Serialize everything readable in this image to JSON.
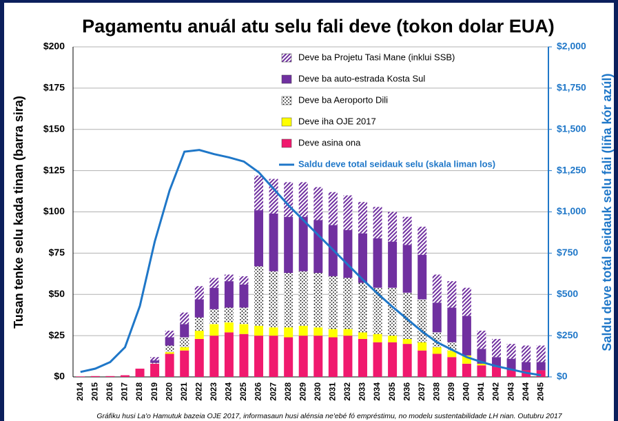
{
  "chart_data": {
    "type": "stacked_bar_line",
    "title": "Pagamentu anuál atu selu fali deve (tokon dolar EUA)",
    "y_label": "Tusan tenke selu kada tinan (barra sira)",
    "y2_label": "Saldu deve totál seidauk selu fali (liña kór azúl)",
    "footnote": "Gráfiku husi La'o Hamutuk bazeia OJE 2017, informasaun husi alénsia ne'ebé fó empréstimu, no modelu sustentabilidade LH nian. Outubru 2017",
    "categories": [
      "2014",
      "2015",
      "2016",
      "2017",
      "2018",
      "2019",
      "2020",
      "2021",
      "2022",
      "2023",
      "2024",
      "2025",
      "2026",
      "2027",
      "2028",
      "2029",
      "2030",
      "2031",
      "2032",
      "2033",
      "2034",
      "2035",
      "2036",
      "2037",
      "2038",
      "2039",
      "2040",
      "2041",
      "2042",
      "2043",
      "2044",
      "2045"
    ],
    "ylim": [
      0,
      200
    ],
    "yticks": [
      {
        "value": 0,
        "label": "$0"
      },
      {
        "value": 25,
        "label": "$25"
      },
      {
        "value": 50,
        "label": "$50"
      },
      {
        "value": 75,
        "label": "$75"
      },
      {
        "value": 100,
        "label": "$100"
      },
      {
        "value": 125,
        "label": "$125"
      },
      {
        "value": 150,
        "label": "$150"
      },
      {
        "value": 175,
        "label": "$175"
      },
      {
        "value": 200,
        "label": "$200"
      }
    ],
    "y2lim": [
      0,
      2000
    ],
    "y2ticks": [
      {
        "value": 0,
        "label": "$0"
      },
      {
        "value": 250,
        "label": "$250"
      },
      {
        "value": 500,
        "label": "$500"
      },
      {
        "value": 750,
        "label": "$750"
      },
      {
        "value": 1000,
        "label": "$1,000"
      },
      {
        "value": 1250,
        "label": "$1,250"
      },
      {
        "value": 1500,
        "label": "$1,500"
      },
      {
        "value": 1750,
        "label": "$1,750"
      },
      {
        "value": 2000,
        "label": "$2,000"
      }
    ],
    "grid": true,
    "legend": "top-right",
    "series": [
      {
        "name": "Deve asina ona",
        "color": "#f0196e",
        "values": [
          0.3,
          0.5,
          0.5,
          1,
          5,
          8,
          14,
          16,
          23,
          25,
          27,
          26,
          25,
          25,
          24,
          25,
          25,
          24,
          25,
          23,
          21,
          21,
          20,
          16,
          14,
          12,
          8,
          7,
          6,
          4,
          4,
          4
        ]
      },
      {
        "name": "Deve iha OJE 2017",
        "color": "#ffff00",
        "values": [
          0,
          0,
          0,
          0,
          0,
          0,
          1,
          2,
          5,
          7,
          6,
          6,
          6,
          5,
          6,
          6,
          5,
          5,
          4,
          4,
          5,
          4,
          3,
          5,
          4,
          4,
          5,
          1,
          0,
          0,
          0,
          0
        ]
      },
      {
        "name": "Deve ba Aeroporto Dili",
        "color": "#000000",
        "pattern": "dots",
        "values": [
          0,
          0,
          0,
          0,
          0,
          0.5,
          4,
          6,
          8,
          9,
          9,
          10,
          36,
          34,
          33,
          33,
          33,
          32,
          31,
          30,
          28,
          29,
          28,
          26,
          9,
          5,
          0,
          0,
          0,
          0,
          0,
          0
        ]
      },
      {
        "name": "Deve ba auto-estrada Kosta Sul",
        "color": "#7030a0",
        "values": [
          0,
          0,
          0,
          0,
          0,
          1.5,
          5,
          8,
          11,
          13,
          16,
          14,
          34,
          35,
          34,
          33,
          32,
          31,
          29,
          30,
          30,
          28,
          29,
          27,
          18,
          21,
          24,
          9,
          6,
          7,
          5,
          5
        ]
      },
      {
        "name": "Deve ba Projetu Tasi Mane (inklui SSB)",
        "color": "#7030a0",
        "pattern": "hatch",
        "values": [
          0,
          0,
          0,
          0,
          0,
          2,
          4,
          7,
          8,
          6,
          4,
          5,
          21,
          21,
          21,
          21,
          20,
          20,
          21,
          19,
          19,
          18,
          17,
          17,
          17,
          16,
          17,
          11,
          11,
          9,
          10,
          10
        ]
      },
      {
        "name": "Saldu deve total seidauk selu (skala liman los)",
        "color": "#1f77c8",
        "type": "line",
        "axis": "y2",
        "values": [
          30,
          50,
          90,
          180,
          430,
          820,
          1130,
          1365,
          1375,
          1350,
          1330,
          1305,
          1240,
          1140,
          1040,
          950,
          860,
          770,
          680,
          590,
          505,
          425,
          350,
          275,
          210,
          165,
          120,
          90,
          65,
          45,
          25,
          10
        ]
      }
    ]
  }
}
